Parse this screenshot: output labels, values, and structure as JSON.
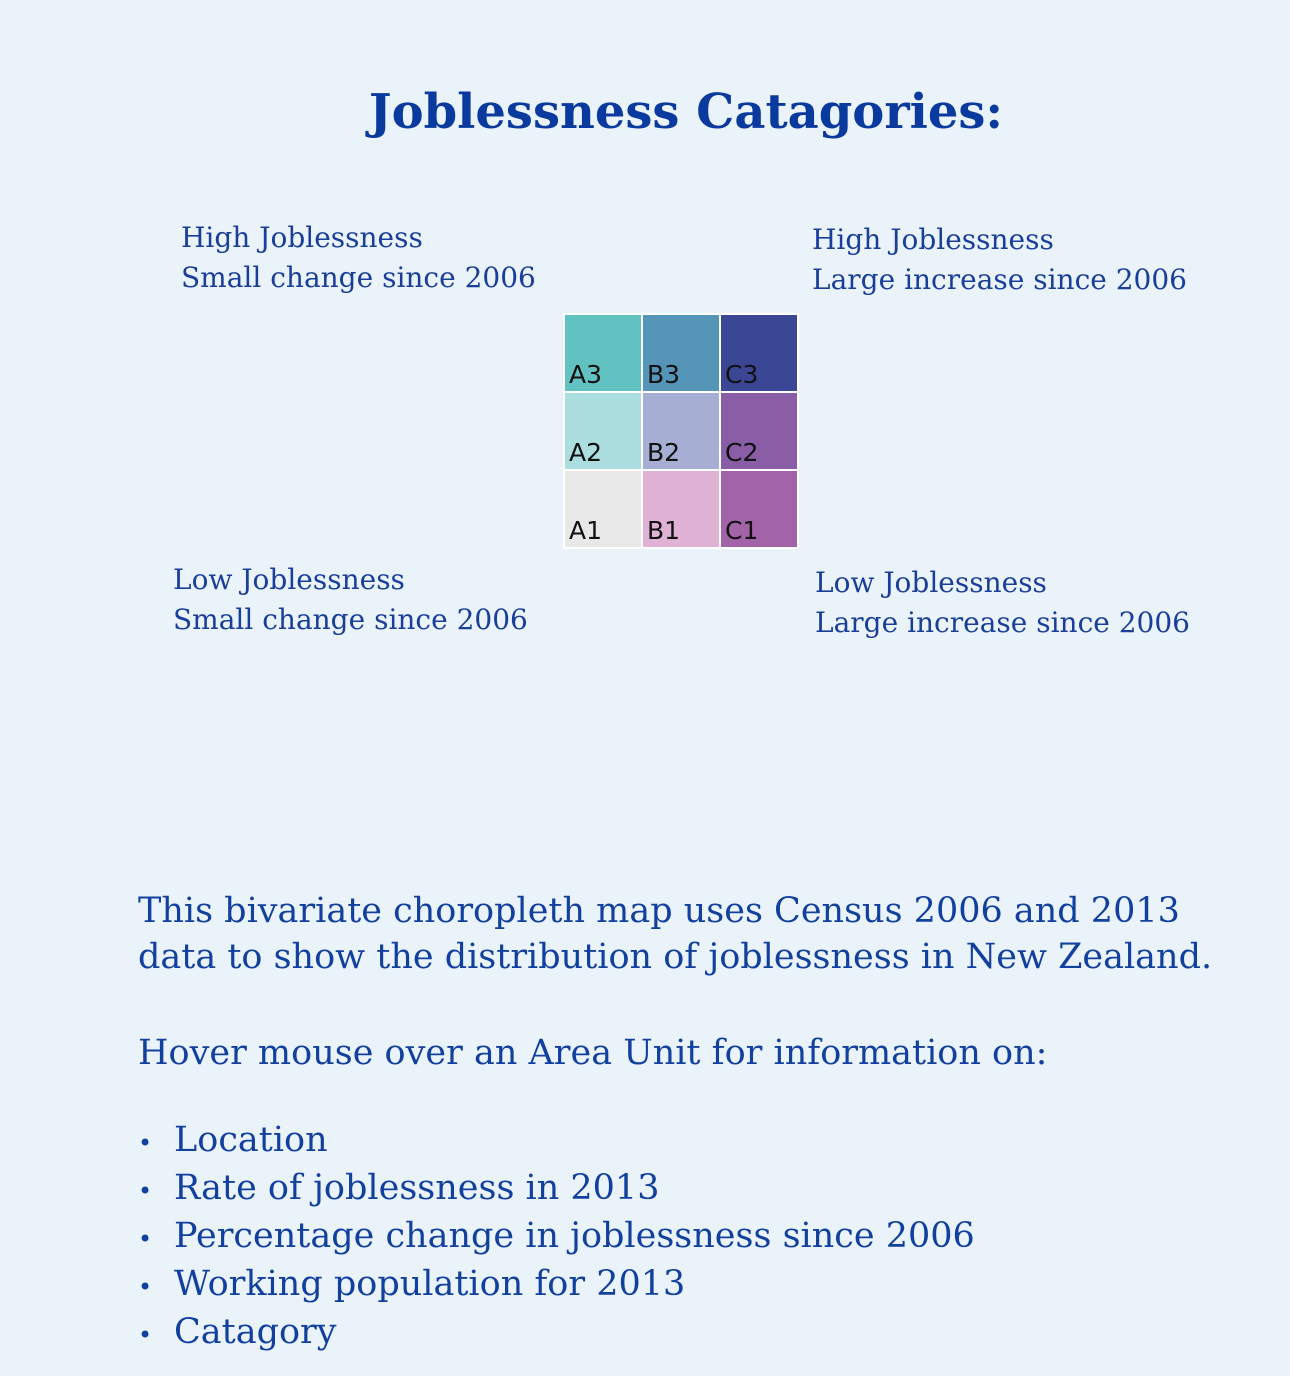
{
  "legend": {
    "title": "Joblessness Catagories:",
    "corners": {
      "top_left": [
        "High Joblessness",
        "Small change since 2006"
      ],
      "top_right": [
        "High Joblessness",
        "Large increase since 2006"
      ],
      "bottom_left": [
        "Low Joblessness",
        "Small change since 2006"
      ],
      "bottom_right": [
        "Low Joblessness",
        "Large increase since 2006"
      ]
    },
    "grid": [
      [
        {
          "label": "A3",
          "color": "#62c2c1"
        },
        {
          "label": "B3",
          "color": "#5596b8"
        },
        {
          "label": "C3",
          "color": "#3b4695"
        }
      ],
      [
        {
          "label": "A2",
          "color": "#acdddf"
        },
        {
          "label": "B2",
          "color": "#a6aed3"
        },
        {
          "label": "C2",
          "color": "#8a5ea7"
        }
      ],
      [
        {
          "label": "A1",
          "color": "#e8e8e8"
        },
        {
          "label": "B1",
          "color": "#e0b2d5"
        },
        {
          "label": "C1",
          "color": "#a263a8"
        }
      ]
    ]
  },
  "description": {
    "line1": "This bivariate choropleth map uses Census 2006 and 2013",
    "line2": "data to show the distribution of joblessness in New Zealand."
  },
  "hover_prompt": "Hover mouse over an Area Unit for information on:",
  "info_items": [
    "Location",
    "Rate of joblessness in 2013",
    "Percentage change in joblessness since 2006",
    "Working population for 2013",
    "Catagory"
  ],
  "bullet_symbol": "•"
}
